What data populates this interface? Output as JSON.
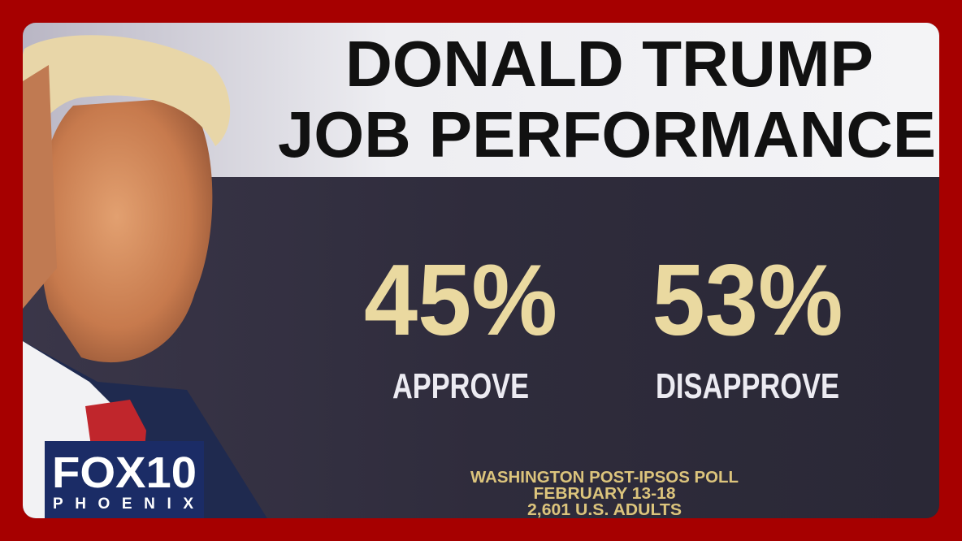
{
  "header": {
    "title_lines": [
      "DONALD TRUMP",
      "JOB PERFORMANCE"
    ]
  },
  "results": [
    {
      "value": "45%",
      "label": "APPROVE"
    },
    {
      "value": "53%",
      "label": "DISAPPROVE"
    }
  ],
  "source": [
    "WASHINGTON POST-IPSOS POLL",
    "FEBRUARY 13-18",
    "2,601 U.S. ADULTS"
  ],
  "logo": {
    "brand": "FOX10",
    "city": "PHOENIX"
  }
}
